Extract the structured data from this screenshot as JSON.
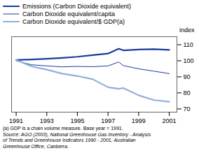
{
  "chart_data": {
    "type": "line",
    "x": [
      1991,
      1992,
      1993,
      1994,
      1995,
      1996,
      1997,
      1997.7,
      1998,
      1999,
      2000,
      2001
    ],
    "series": [
      {
        "name": "Emissions (Carbon Dioxide equivalent)",
        "color": "#1a3a9c",
        "values": [
          100.5,
          100.8,
          101.2,
          101.8,
          102.5,
          103.5,
          104.5,
          107.5,
          106.5,
          107.0,
          107.2,
          106.8
        ]
      },
      {
        "name": "Carbon Dioxide equivalent/capita",
        "color": "#1a3a9c",
        "values": [
          100.0,
          97.5,
          96.8,
          96.2,
          96.5,
          96.3,
          96.8,
          99.2,
          97.0,
          95.0,
          93.5,
          92.0
        ]
      },
      {
        "name": "Carbon Dioxide equivalent/$ GDP(a)",
        "color": "#8db0d8",
        "values": [
          100.5,
          96.5,
          94.5,
          92.0,
          90.5,
          88.5,
          83.5,
          82.5,
          83.0,
          78.5,
          75.5,
          74.5
        ]
      }
    ],
    "y_label": "index",
    "xlim": [
      1990.7,
      2001.5
    ],
    "xticks": [
      1991,
      1993,
      1995,
      1997,
      1999,
      2001
    ],
    "ylim": [
      68,
      115
    ],
    "yticks": [
      70,
      80,
      90,
      100,
      110
    ],
    "grid": false,
    "legend": "top",
    "annotations": [
      "(a) GDP is a chain volume measure. Base year = 1991.",
      "Source: AGO (2003), National Greenhouse Gas Inventory - Analysis\nof Trends and Greenhouse Indicators 1990 - 2001, Australian\nGreenhouse Office, Canberra."
    ]
  }
}
